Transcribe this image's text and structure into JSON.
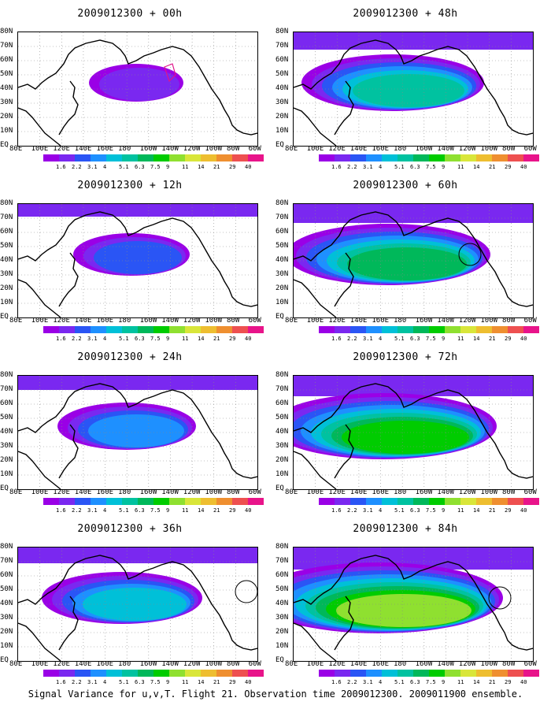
{
  "panels": [
    {
      "title": "2009012300 + 00h",
      "level": 0
    },
    {
      "title": "2009012300 + 48h",
      "level": 4
    },
    {
      "title": "2009012300 + 12h",
      "level": 1
    },
    {
      "title": "2009012300 + 60h",
      "level": 5
    },
    {
      "title": "2009012300 + 24h",
      "level": 2
    },
    {
      "title": "2009012300 + 72h",
      "level": 6
    },
    {
      "title": "2009012300 + 36h",
      "level": 3
    },
    {
      "title": "2009012300 + 84h",
      "level": 7
    }
  ],
  "lat_labels": [
    "80N",
    "70N",
    "60N",
    "50N",
    "40N",
    "30N",
    "20N",
    "10N",
    "EQ"
  ],
  "lon_labels": [
    "80E",
    "100E",
    "120E",
    "140E",
    "160E",
    "180",
    "160W",
    "140W",
    "120W",
    "100W",
    "80W",
    "60W"
  ],
  "colorbar": {
    "labels": [
      "1.6",
      "2.2",
      "3.1",
      "4",
      "5.1",
      "6.3",
      "7.5",
      "9",
      "11",
      "14",
      "21",
      "29",
      "40"
    ],
    "colors": [
      "#9a00e6",
      "#7a28f0",
      "#2a55f5",
      "#1e90ff",
      "#00c0d8",
      "#00c2a0",
      "#00b85a",
      "#00cc00",
      "#8fe030",
      "#d9e63a",
      "#eebe30",
      "#ef8f30",
      "#ee5050",
      "#e8148a"
    ]
  },
  "caption": "Signal Variance for u,v,T. Flight 21. Observation time 2009012300. 2009011900 ensemble."
}
